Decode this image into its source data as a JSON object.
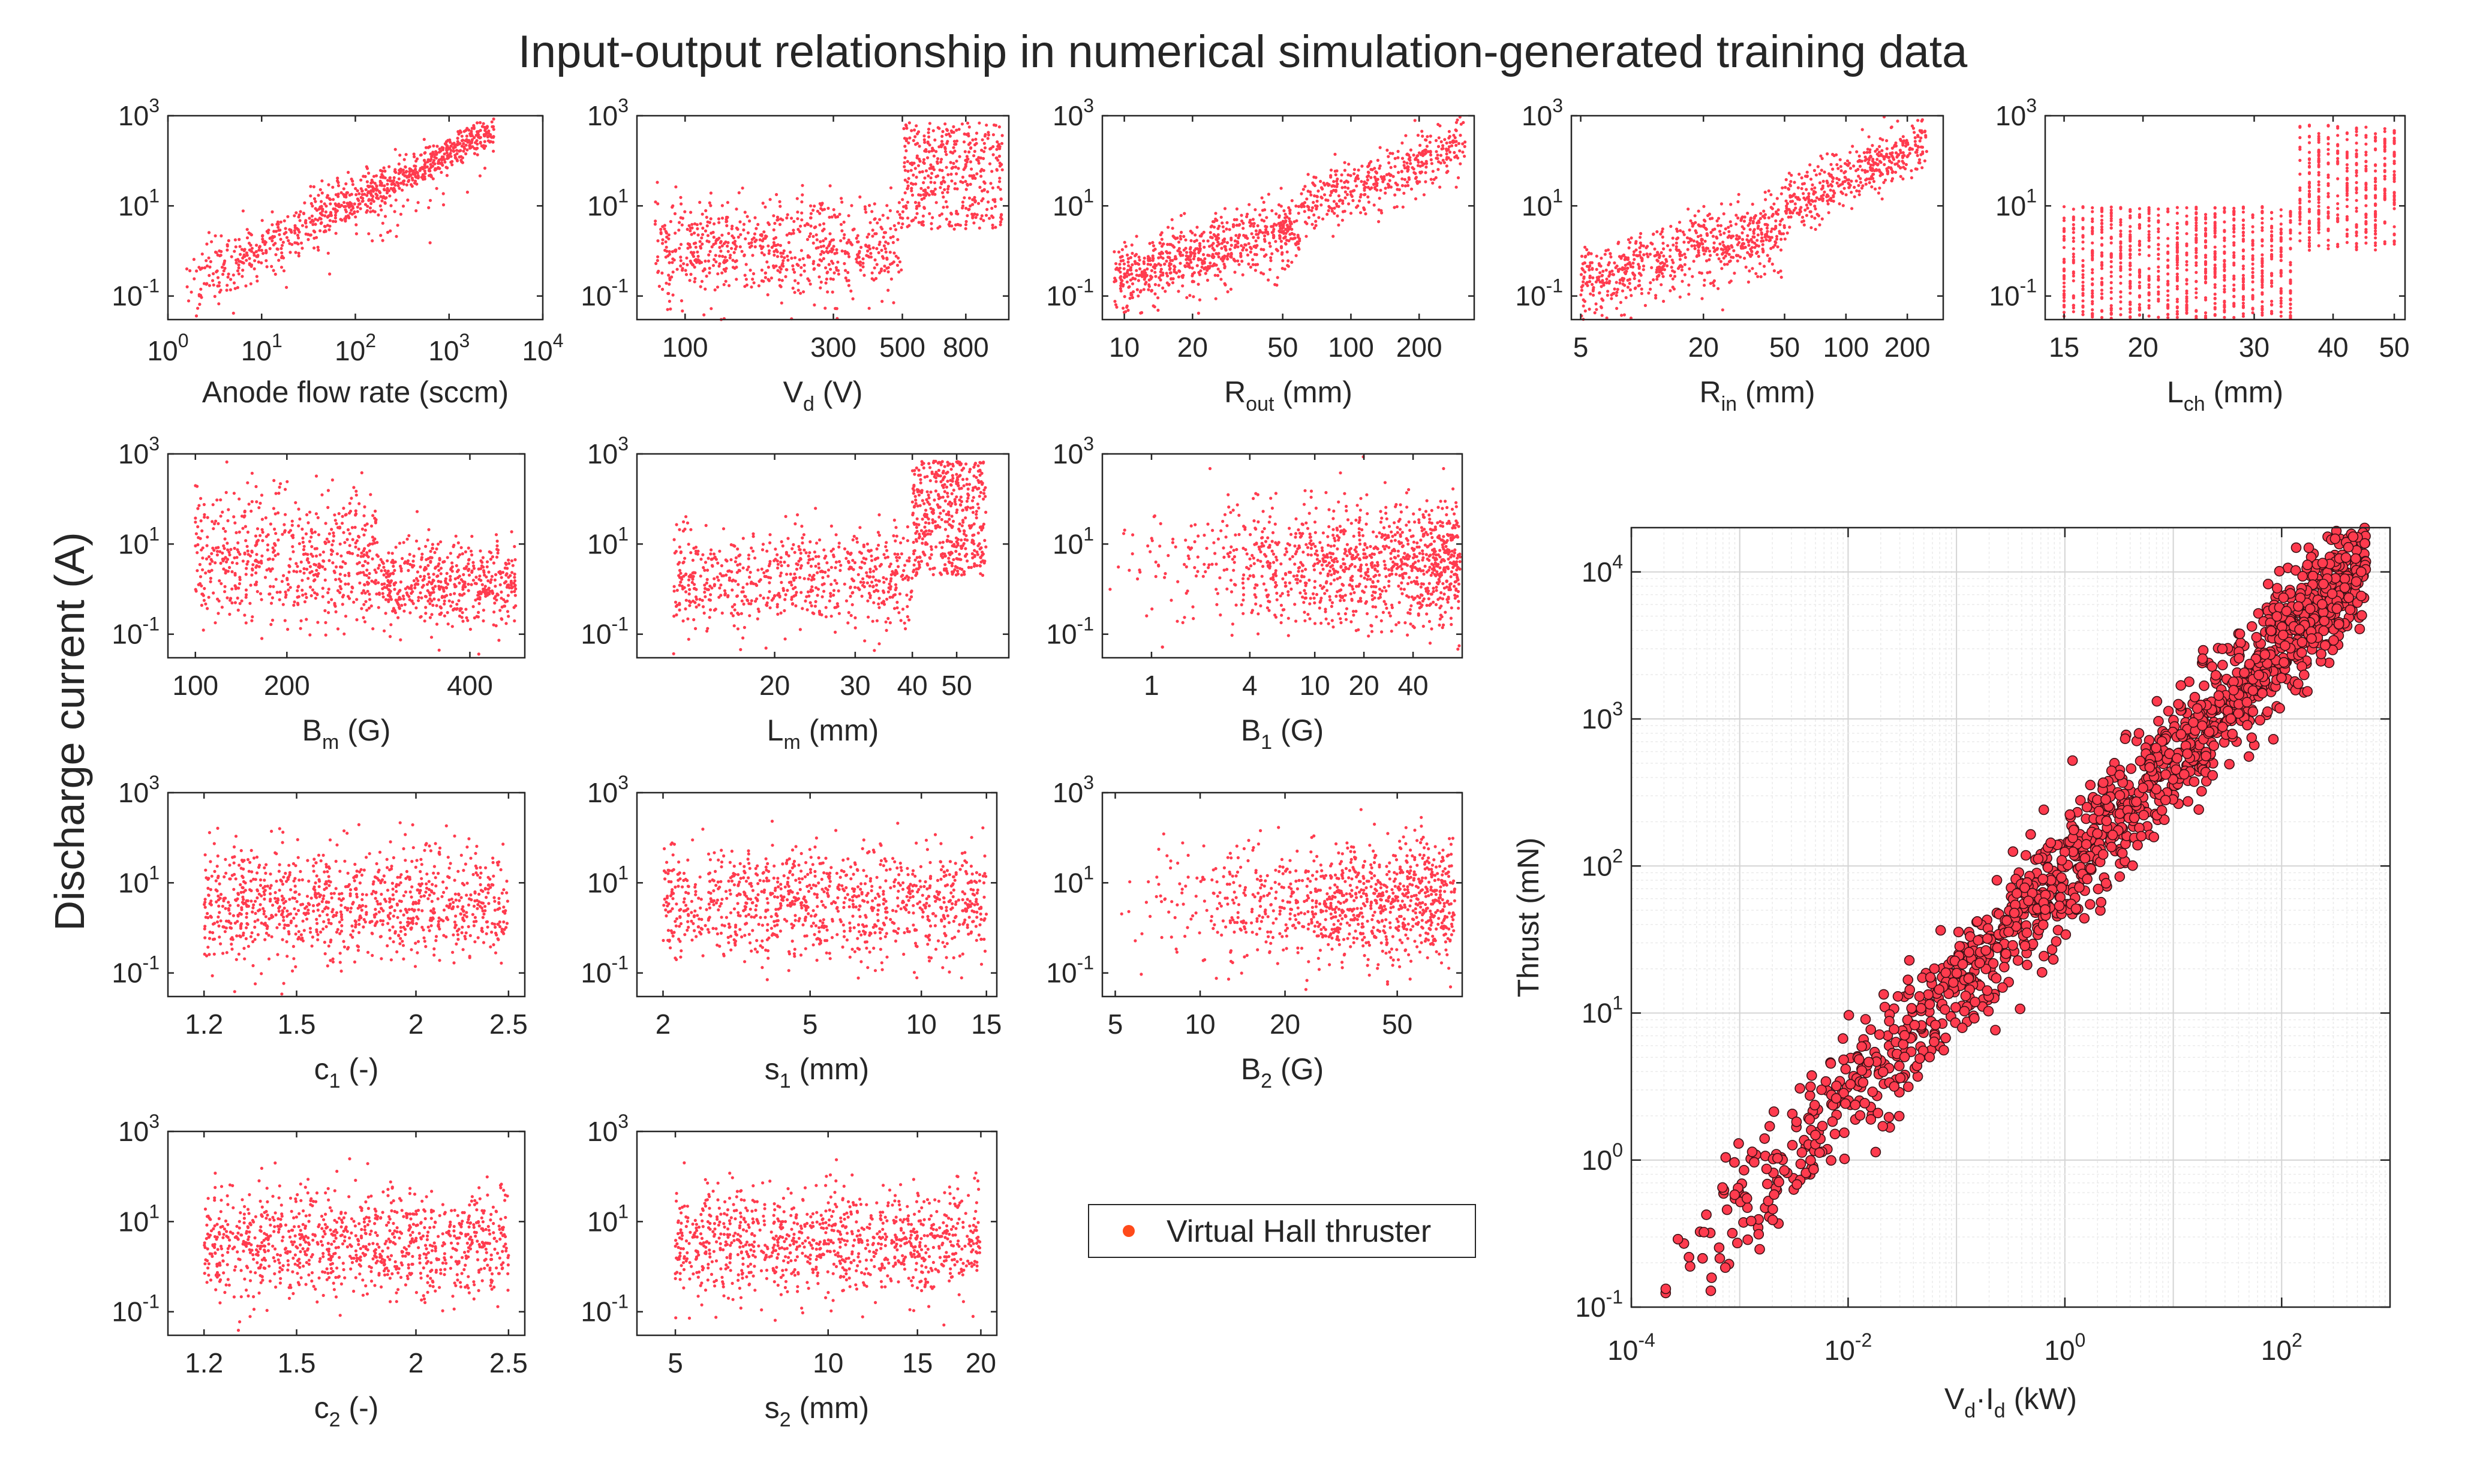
{
  "figure": {
    "title": "Input-output relationship in numerical simulation-generated training data",
    "shared_ylabel": "Discharge current (A)",
    "marker_color": "#ff3b4e",
    "marker_edge": "#3a1014",
    "legend": {
      "label": "Virtual Hall thruster",
      "marker_color": "#ff4a1a"
    }
  },
  "chart_data": [
    {
      "id": "anode",
      "type": "scatter",
      "xscale": "log",
      "yscale": "log",
      "xlim": [
        1,
        10000
      ],
      "ylim": [
        0.03,
        1000
      ],
      "xticks": [
        {
          "v": 1,
          "base": "10",
          "exp": "0"
        },
        {
          "v": 10,
          "base": "10",
          "exp": "1"
        },
        {
          "v": 100,
          "base": "10",
          "exp": "2"
        },
        {
          "v": 1000,
          "base": "10",
          "exp": "3"
        },
        {
          "v": 10000,
          "base": "10",
          "exp": "4"
        }
      ],
      "yticks": [
        {
          "v": 0.1,
          "base": "10",
          "exp": "-1"
        },
        {
          "v": 10,
          "base": "10",
          "exp": "1"
        },
        {
          "v": 1000,
          "base": "10",
          "exp": "3"
        }
      ],
      "xlabel": {
        "main": "Anode flow rate (sccm)",
        "sub": ""
      },
      "pattern": {
        "kind": "corr",
        "x0": 1.5,
        "x1": 3000,
        "y0": 0.15,
        "y1": 500,
        "spread": 0.35,
        "n": 900
      }
    },
    {
      "id": "vd",
      "type": "scatter",
      "xscale": "log",
      "yscale": "log",
      "xlim": [
        70,
        1100
      ],
      "ylim": [
        0.03,
        1000
      ],
      "xticks": [
        {
          "v": 100,
          "label": "100"
        },
        {
          "v": 300,
          "label": "300"
        },
        {
          "v": 500,
          "label": "500"
        },
        {
          "v": 800,
          "label": "800"
        }
      ],
      "yticks": [
        {
          "v": 0.1,
          "base": "10",
          "exp": "-1"
        },
        {
          "v": 10,
          "base": "10",
          "exp": "1"
        },
        {
          "v": 1000,
          "base": "10",
          "exp": "3"
        }
      ],
      "xlabel": {
        "main": "V",
        "sub": "d",
        "rest": " (V)"
      },
      "pattern": {
        "kind": "step",
        "xa": 80,
        "xb": 500,
        "xc": 1050,
        "loA": 0.04,
        "hiA": 30,
        "loB": 3,
        "hiB": 700,
        "n": 1100
      }
    },
    {
      "id": "rout",
      "type": "scatter",
      "xscale": "log",
      "yscale": "log",
      "xlim": [
        8,
        350
      ],
      "ylim": [
        0.03,
        1000
      ],
      "xticks": [
        {
          "v": 10,
          "label": "10"
        },
        {
          "v": 20,
          "label": "20"
        },
        {
          "v": 50,
          "label": "50"
        },
        {
          "v": 100,
          "label": "100"
        },
        {
          "v": 200,
          "label": "200"
        }
      ],
      "yticks": [
        {
          "v": 0.1,
          "base": "10",
          "exp": "-1"
        },
        {
          "v": 10,
          "base": "10",
          "exp": "1"
        },
        {
          "v": 1000,
          "base": "10",
          "exp": "3"
        }
      ],
      "xlabel": {
        "main": "R",
        "sub": "out",
        "rest": " (mm)"
      },
      "pattern": {
        "kind": "wedge",
        "xa": 9,
        "xb": 60,
        "xc": 320,
        "n": 1100
      }
    },
    {
      "id": "rin",
      "type": "scatter",
      "xscale": "log",
      "yscale": "log",
      "xlim": [
        4.5,
        300
      ],
      "ylim": [
        0.03,
        1000
      ],
      "xticks": [
        {
          "v": 5,
          "label": "5"
        },
        {
          "v": 20,
          "label": "20"
        },
        {
          "v": 50,
          "label": "50"
        },
        {
          "v": 100,
          "label": "100"
        },
        {
          "v": 200,
          "label": "200"
        }
      ],
      "yticks": [
        {
          "v": 0.1,
          "base": "10",
          "exp": "-1"
        },
        {
          "v": 10,
          "base": "10",
          "exp": "1"
        },
        {
          "v": 1000,
          "base": "10",
          "exp": "3"
        }
      ],
      "xlabel": {
        "main": "R",
        "sub": "in",
        "rest": " (mm)"
      },
      "pattern": {
        "kind": "wedge",
        "xa": 5,
        "xb": 50,
        "xc": 250,
        "n": 1100
      }
    },
    {
      "id": "lch",
      "type": "scatter",
      "xscale": "log",
      "yscale": "log",
      "xlim": [
        14,
        52
      ],
      "ylim": [
        0.03,
        1000
      ],
      "xticks": [
        {
          "v": 15,
          "label": "15"
        },
        {
          "v": 20,
          "label": "20"
        },
        {
          "v": 30,
          "label": "30"
        },
        {
          "v": 40,
          "label": "40"
        },
        {
          "v": 50,
          "label": "50"
        }
      ],
      "yticks": [
        {
          "v": 0.1,
          "base": "10",
          "exp": "-1"
        },
        {
          "v": 10,
          "base": "10",
          "exp": "1"
        },
        {
          "v": 1000,
          "base": "10",
          "exp": "3"
        }
      ],
      "xlabel": {
        "main": "L",
        "sub": "ch",
        "rest": " (mm)"
      },
      "pattern": {
        "kind": "columns",
        "xa": 15,
        "xb": 50,
        "split": 35,
        "cols": 36,
        "n": 1300
      }
    },
    {
      "id": "bm",
      "type": "scatter",
      "xscale": "linear",
      "yscale": "log",
      "xlim": [
        70,
        460
      ],
      "ylim": [
        0.03,
        1000
      ],
      "xticks": [
        {
          "v": 100,
          "label": "100"
        },
        {
          "v": 200,
          "label": "200"
        },
        {
          "v": 400,
          "label": "400"
        }
      ],
      "yticks": [
        {
          "v": 0.1,
          "base": "10",
          "exp": "-1"
        },
        {
          "v": 10,
          "base": "10",
          "exp": "1"
        },
        {
          "v": 1000,
          "base": "10",
          "exp": "3"
        }
      ],
      "xlabel": {
        "main": "B",
        "sub": "m",
        "rest": " (G)"
      },
      "pattern": {
        "kind": "stepdown",
        "xa": 100,
        "xb": 300,
        "xc": 450,
        "n": 1100
      }
    },
    {
      "id": "lm",
      "type": "scatter",
      "xscale": "log",
      "yscale": "log",
      "xlim": [
        10,
        65
      ],
      "ylim": [
        0.03,
        1000
      ],
      "xticks": [
        {
          "v": 20,
          "label": "20"
        },
        {
          "v": 30,
          "label": "30"
        },
        {
          "v": 40,
          "label": "40"
        },
        {
          "v": 50,
          "label": "50"
        }
      ],
      "yticks": [
        {
          "v": 0.1,
          "base": "10",
          "exp": "-1"
        },
        {
          "v": 10,
          "base": "10",
          "exp": "1"
        },
        {
          "v": 1000,
          "base": "10",
          "exp": "3"
        }
      ],
      "xlabel": {
        "main": "L",
        "sub": "m",
        "rest": " (mm)"
      },
      "pattern": {
        "kind": "step",
        "xa": 12,
        "xb": 40,
        "xc": 58,
        "loA": 0.04,
        "hiA": 60,
        "loB": 2,
        "hiB": 700,
        "n": 1100
      }
    },
    {
      "id": "b1",
      "type": "scatter",
      "xscale": "log",
      "yscale": "log",
      "xlim": [
        0.5,
        80
      ],
      "ylim": [
        0.03,
        1000
      ],
      "xticks": [
        {
          "v": 1,
          "label": "1"
        },
        {
          "v": 4,
          "label": "4"
        },
        {
          "v": 10,
          "label": "10"
        },
        {
          "v": 20,
          "label": "20"
        },
        {
          "v": 40,
          "label": "40"
        }
      ],
      "yticks": [
        {
          "v": 0.1,
          "base": "10",
          "exp": "-1"
        },
        {
          "v": 10,
          "base": "10",
          "exp": "1"
        },
        {
          "v": 1000,
          "base": "10",
          "exp": "3"
        }
      ],
      "xlabel": {
        "main": "B",
        "sub": "1",
        "rest": " (G)"
      },
      "pattern": {
        "kind": "dense_right",
        "xa": 0.5,
        "xb": 78,
        "n": 1100
      }
    },
    {
      "id": "c1",
      "type": "scatter",
      "xscale": "log",
      "yscale": "log",
      "xlim": [
        1.1,
        2.6
      ],
      "ylim": [
        0.03,
        1000
      ],
      "xticks": [
        {
          "v": 1.2,
          "label": "1.2"
        },
        {
          "v": 1.5,
          "label": "1.5"
        },
        {
          "v": 2,
          "label": "2"
        },
        {
          "v": 2.5,
          "label": "2.5"
        }
      ],
      "yticks": [
        {
          "v": 0.1,
          "base": "10",
          "exp": "-1"
        },
        {
          "v": 10,
          "base": "10",
          "exp": "1"
        },
        {
          "v": 1000,
          "base": "10",
          "exp": "3"
        }
      ],
      "xlabel": {
        "main": "c",
        "sub": "1",
        "rest": " (-)"
      },
      "pattern": {
        "kind": "uniform",
        "xa": 1.2,
        "xb": 2.5,
        "n": 1000
      }
    },
    {
      "id": "s1",
      "type": "scatter",
      "xscale": "log",
      "yscale": "log",
      "xlim": [
        1.7,
        16
      ],
      "ylim": [
        0.03,
        1000
      ],
      "xticks": [
        {
          "v": 2,
          "label": "2"
        },
        {
          "v": 5,
          "label": "5"
        },
        {
          "v": 10,
          "label": "10"
        },
        {
          "v": 15,
          "label": "15"
        }
      ],
      "yticks": [
        {
          "v": 0.1,
          "base": "10",
          "exp": "-1"
        },
        {
          "v": 10,
          "base": "10",
          "exp": "1"
        },
        {
          "v": 1000,
          "base": "10",
          "exp": "3"
        }
      ],
      "xlabel": {
        "main": "s",
        "sub": "1",
        "rest": " (mm)"
      },
      "pattern": {
        "kind": "uniform",
        "xa": 2,
        "xb": 15,
        "n": 1000
      }
    },
    {
      "id": "b2",
      "type": "scatter",
      "xscale": "log",
      "yscale": "log",
      "xlim": [
        4.5,
        85
      ],
      "ylim": [
        0.03,
        1000
      ],
      "xticks": [
        {
          "v": 5,
          "label": "5"
        },
        {
          "v": 10,
          "label": "10"
        },
        {
          "v": 20,
          "label": "20"
        },
        {
          "v": 50,
          "label": "50"
        }
      ],
      "yticks": [
        {
          "v": 0.1,
          "base": "10",
          "exp": "-1"
        },
        {
          "v": 10,
          "base": "10",
          "exp": "1"
        },
        {
          "v": 1000,
          "base": "10",
          "exp": "3"
        }
      ],
      "xlabel": {
        "main": "B",
        "sub": "2",
        "rest": " (G)"
      },
      "pattern": {
        "kind": "dense_right",
        "xa": 5,
        "xb": 80,
        "n": 1000
      }
    },
    {
      "id": "c2",
      "type": "scatter",
      "xscale": "log",
      "yscale": "log",
      "xlim": [
        1.1,
        2.6
      ],
      "ylim": [
        0.03,
        1000
      ],
      "xticks": [
        {
          "v": 1.2,
          "label": "1.2"
        },
        {
          "v": 1.5,
          "label": "1.5"
        },
        {
          "v": 2,
          "label": "2"
        },
        {
          "v": 2.5,
          "label": "2.5"
        }
      ],
      "yticks": [
        {
          "v": 0.1,
          "base": "10",
          "exp": "-1"
        },
        {
          "v": 10,
          "base": "10",
          "exp": "1"
        },
        {
          "v": 1000,
          "base": "10",
          "exp": "3"
        }
      ],
      "xlabel": {
        "main": "c",
        "sub": "2",
        "rest": " (-)"
      },
      "pattern": {
        "kind": "uniform",
        "xa": 1.2,
        "xb": 2.5,
        "n": 1000
      }
    },
    {
      "id": "s2",
      "type": "scatter",
      "xscale": "log",
      "yscale": "log",
      "xlim": [
        4.2,
        21.5
      ],
      "ylim": [
        0.03,
        1000
      ],
      "xticks": [
        {
          "v": 5,
          "label": "5"
        },
        {
          "v": 10,
          "label": "10"
        },
        {
          "v": 15,
          "label": "15"
        },
        {
          "v": 20,
          "label": "20"
        }
      ],
      "yticks": [
        {
          "v": 0.1,
          "base": "10",
          "exp": "-1"
        },
        {
          "v": 10,
          "base": "10",
          "exp": "1"
        },
        {
          "v": 1000,
          "base": "10",
          "exp": "3"
        }
      ],
      "xlabel": {
        "main": "s",
        "sub": "2",
        "rest": " (mm)"
      },
      "pattern": {
        "kind": "uniform",
        "xa": 5,
        "xb": 20,
        "n": 1000
      }
    },
    {
      "id": "thrust",
      "type": "scatter",
      "xscale": "log",
      "yscale": "log",
      "xlim": [
        0.0001,
        1000
      ],
      "ylim": [
        0.1,
        20000
      ],
      "grid": true,
      "xticks": [
        {
          "v": 0.0001,
          "base": "10",
          "exp": "-4"
        },
        {
          "v": 0.01,
          "base": "10",
          "exp": "-2"
        },
        {
          "v": 1,
          "base": "10",
          "exp": "0"
        },
        {
          "v": 100,
          "base": "10",
          "exp": "2"
        }
      ],
      "yticks": [
        {
          "v": 0.1,
          "base": "10",
          "exp": "-1"
        },
        {
          "v": 1,
          "base": "10",
          "exp": "0"
        },
        {
          "v": 10,
          "base": "10",
          "exp": "1"
        },
        {
          "v": 100,
          "base": "10",
          "exp": "2"
        },
        {
          "v": 1000,
          "base": "10",
          "exp": "3"
        },
        {
          "v": 10000,
          "base": "10",
          "exp": "4"
        }
      ],
      "xlabel": {
        "main": "V",
        "sub": "d",
        "rest": "·I",
        "sub2": "d",
        "rest2": " (kW)"
      },
      "ylabel": "Thrust (mN)",
      "pattern": {
        "kind": "thrust",
        "x0": 0.00015,
        "x1": 600,
        "y0": 0.1,
        "y1": 13000,
        "spread": 0.2,
        "n": 1500
      }
    }
  ]
}
